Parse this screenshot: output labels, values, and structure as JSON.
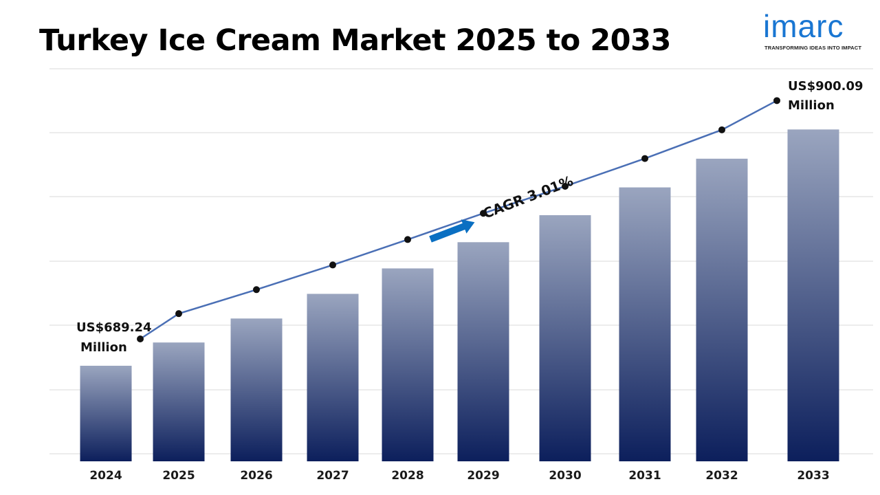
{
  "title": "Turkey Ice Cream Market 2025 to 2033",
  "logo": {
    "wordmark": "imarc",
    "tagline": "TRANSFORMING IDEAS INTO IMPACT",
    "color": "#1976d2"
  },
  "chart_data": {
    "type": "bar",
    "categories": [
      "2024",
      "2025",
      "2026",
      "2027",
      "2028",
      "2029",
      "2030",
      "2031",
      "2032",
      "2033"
    ],
    "values": [
      689.24,
      710.0,
      731.4,
      753.4,
      776.1,
      799.5,
      823.6,
      848.4,
      874.0,
      900.09
    ],
    "trend_line": true,
    "annotations": {
      "start_value": "US$689.24",
      "start_unit": "Million",
      "end_value": "US$900.09",
      "end_unit": "Million",
      "cagr": "CAGR 3.01%"
    },
    "grid": true,
    "legend": "none",
    "colors": {
      "bar_top": "#9aa5bf",
      "bar_bottom": "#0c1f5c",
      "line": "#4a6fb5",
      "marker": "#111111",
      "arrow": "#0a6fc2",
      "grid": "#d9d9d9"
    }
  }
}
